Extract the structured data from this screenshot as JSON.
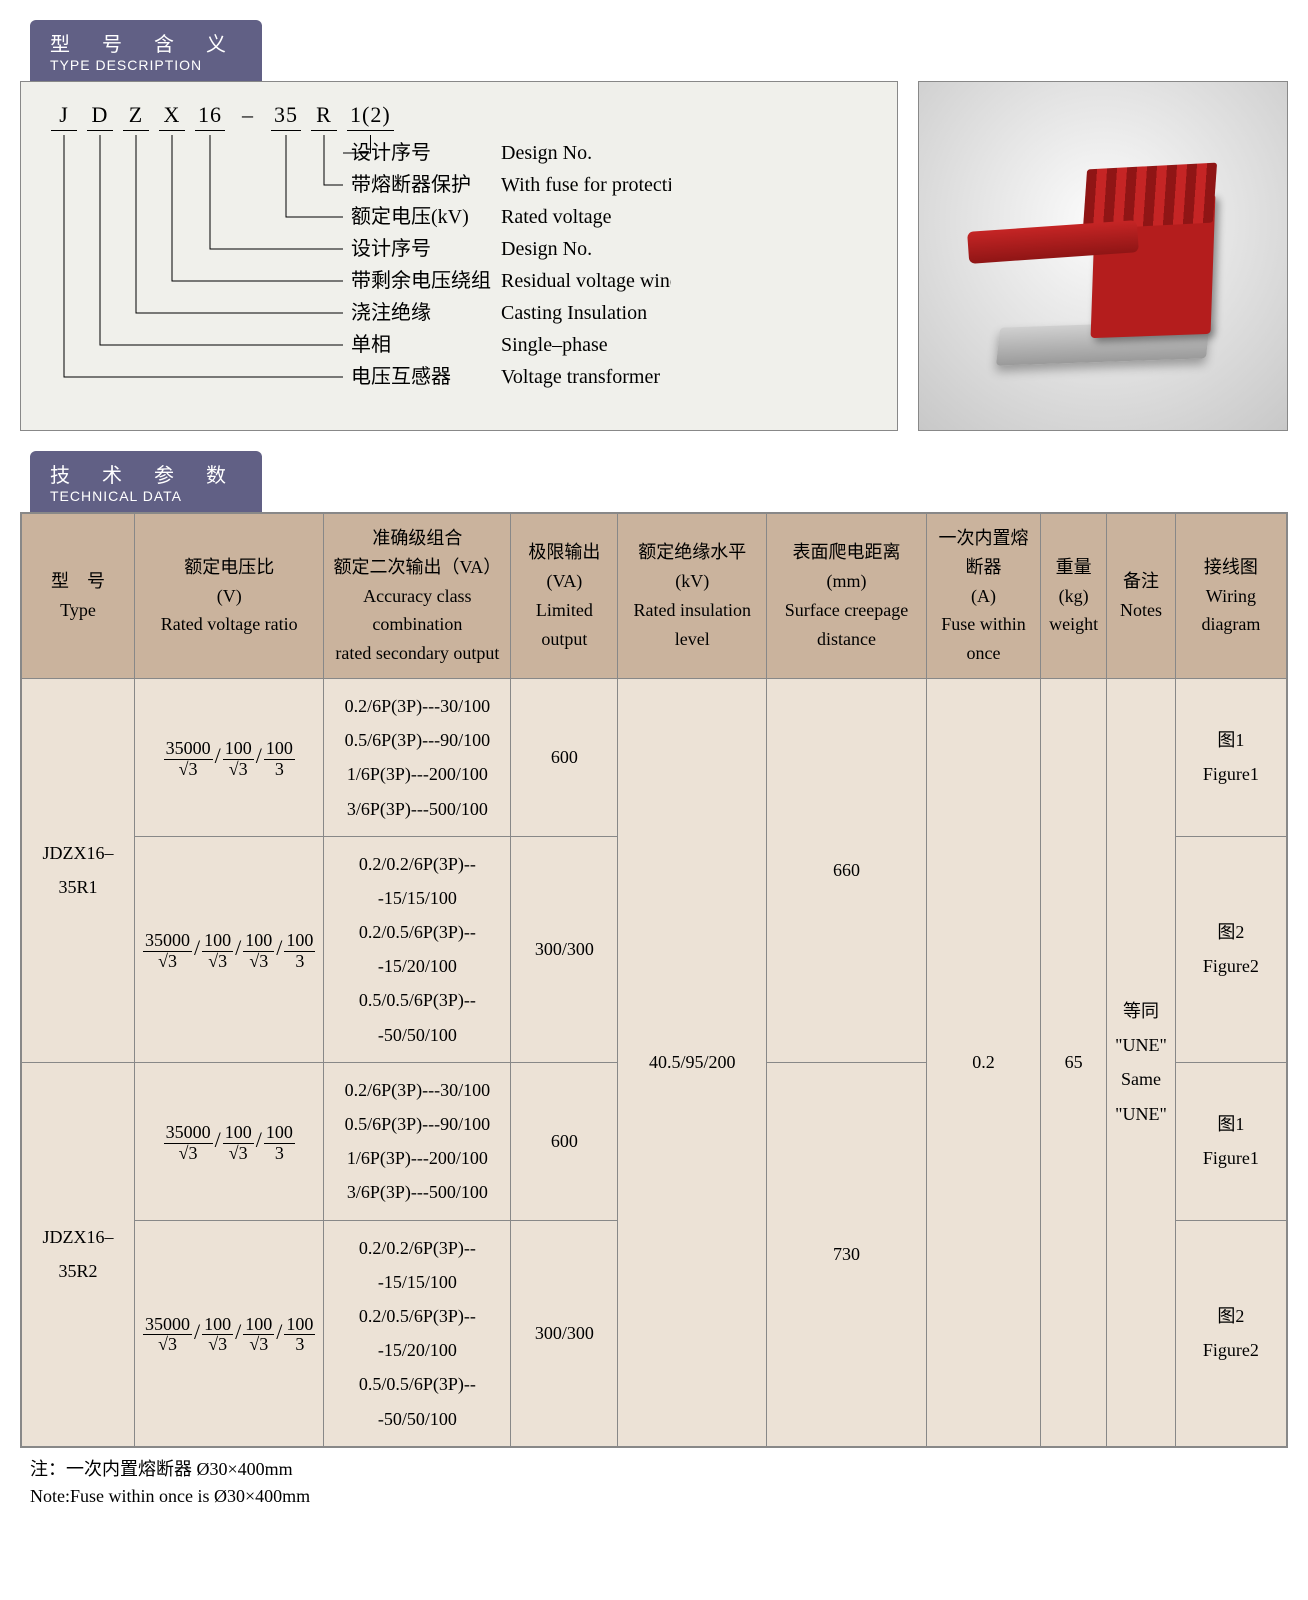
{
  "section_headers": {
    "type_desc": {
      "cn": "型　号　含　义",
      "en": "TYPE DESCRIPTION"
    },
    "tech_data": {
      "cn": "技　术　参　数",
      "en": "TECHNICAL DATA"
    }
  },
  "type_code": {
    "segments": [
      "J",
      "D",
      "Z",
      "X",
      "16",
      "–",
      "35",
      "R",
      "1(2)"
    ],
    "explain": [
      {
        "cn": "设计序号",
        "en": "Design No."
      },
      {
        "cn": "带熔断器保护",
        "en": "With fuse for protection"
      },
      {
        "cn": "额定电压(kV)",
        "en": "Rated voltage"
      },
      {
        "cn": "设计序号",
        "en": "Design No."
      },
      {
        "cn": "带剩余电压绕组",
        "en": "Residual voltage winding"
      },
      {
        "cn": "浇注绝缘",
        "en": "Casting Insulation"
      },
      {
        "cn": "单相",
        "en": "Single–phase"
      },
      {
        "cn": "电压互感器",
        "en": "Voltage transformer"
      }
    ]
  },
  "table": {
    "headers": {
      "type": {
        "cn": "型　号",
        "en": "Type"
      },
      "ratio": {
        "cn": "额定电压比",
        "unit": "(V)",
        "en": "Rated voltage ratio"
      },
      "accuracy": {
        "cn": "准确级组合",
        "cn2": "额定二次输出（VA）",
        "en": "Accuracy class combination",
        "en2": "rated secondary output"
      },
      "limited": {
        "cn": "极限输出",
        "unit": "(VA)",
        "en": "Limited output"
      },
      "insul": {
        "cn": "额定绝缘水平(kV)",
        "en": "Rated insulation level"
      },
      "creep": {
        "cn": "表面爬电距离",
        "unit": "(mm)",
        "en": "Surface creepage distance"
      },
      "fuse": {
        "cn": "一次内置熔断器",
        "unit": "(A)",
        "en": "Fuse within once"
      },
      "weight": {
        "cn": "重量",
        "unit": "(kg)",
        "en": "weight"
      },
      "notes": {
        "cn": "备注",
        "en": "Notes"
      },
      "wiring": {
        "cn": "接线图",
        "en": "Wiring diagram"
      }
    },
    "shared": {
      "insulation": "40.5/95/200",
      "fuse": "0.2",
      "weight": "65",
      "notes_cn": "等同",
      "notes_q1": "\"UNE\"",
      "notes_en": "Same",
      "notes_q2": "\"UNE\""
    },
    "rows": [
      {
        "type": "JDZX16–35R1",
        "creep": "660",
        "sub": [
          {
            "ratio_terms": [
              [
                "35000",
                "√3"
              ],
              [
                "100",
                "√3"
              ],
              [
                "100",
                "3"
              ]
            ],
            "accuracy": [
              "0.2/6P(3P)---30/100",
              "0.5/6P(3P)---90/100",
              "1/6P(3P)---200/100",
              "3/6P(3P)---500/100"
            ],
            "limited": "600",
            "wiring_cn": "图1",
            "wiring_en": "Figure1"
          },
          {
            "ratio_terms": [
              [
                "35000",
                "√3"
              ],
              [
                "100",
                "√3"
              ],
              [
                "100",
                "√3"
              ],
              [
                "100",
                "3"
              ]
            ],
            "accuracy": [
              "0.2/0.2/6P(3P)---15/15/100",
              "0.2/0.5/6P(3P)---15/20/100",
              "0.5/0.5/6P(3P)---50/50/100"
            ],
            "limited": "300/300",
            "wiring_cn": "图2",
            "wiring_en": "Figure2"
          }
        ]
      },
      {
        "type": "JDZX16–35R2",
        "creep": "730",
        "sub": [
          {
            "ratio_terms": [
              [
                "35000",
                "√3"
              ],
              [
                "100",
                "√3"
              ],
              [
                "100",
                "3"
              ]
            ],
            "accuracy": [
              "0.2/6P(3P)---30/100",
              "0.5/6P(3P)---90/100",
              "1/6P(3P)---200/100",
              "3/6P(3P)---500/100"
            ],
            "limited": "600",
            "wiring_cn": "图1",
            "wiring_en": "Figure1"
          },
          {
            "ratio_terms": [
              [
                "35000",
                "√3"
              ],
              [
                "100",
                "√3"
              ],
              [
                "100",
                "√3"
              ],
              [
                "100",
                "3"
              ]
            ],
            "accuracy": [
              "0.2/0.2/6P(3P)---15/15/100",
              "0.2/0.5/6P(3P)---15/20/100",
              "0.5/0.5/6P(3P)---50/50/100"
            ],
            "limited": "300/300",
            "wiring_cn": "图2",
            "wiring_en": "Figure2"
          }
        ]
      }
    ]
  },
  "footnote": {
    "cn": "注：一次内置熔断器 Ø30×400mm",
    "en": "Note:Fuse within once is Ø30×400mm"
  },
  "colors": {
    "header_bg": "#616085",
    "th_bg": "#cab39d",
    "td_bg": "#ece2d6",
    "diagram_bg": "#f0f0eb",
    "product_red": "#b41d1d"
  }
}
